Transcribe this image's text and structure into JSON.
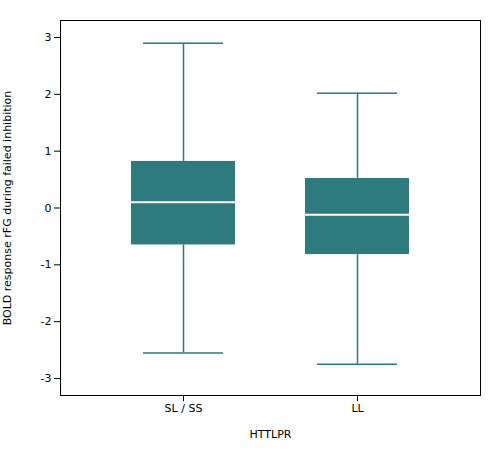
{
  "chart_data": {
    "type": "box",
    "categories": [
      "SL / SS",
      "LL"
    ],
    "values": [
      {
        "q1": -0.65,
        "median": 0.1,
        "q3": 0.82,
        "whisker_low": -2.55,
        "whisker_high": 2.9
      },
      {
        "q1": -0.82,
        "median": -0.12,
        "q3": 0.52,
        "whisker_low": -2.75,
        "whisker_high": 2.02
      }
    ],
    "color": "#2d7b7c",
    "xlabel": "HTTLPR",
    "ylabel": "BOLD response rFG during failed inhibition",
    "ylim": [
      -3.3,
      3.3
    ],
    "yticks": [
      -3,
      -2,
      -1,
      0,
      1,
      2,
      3
    ],
    "grid": false
  }
}
